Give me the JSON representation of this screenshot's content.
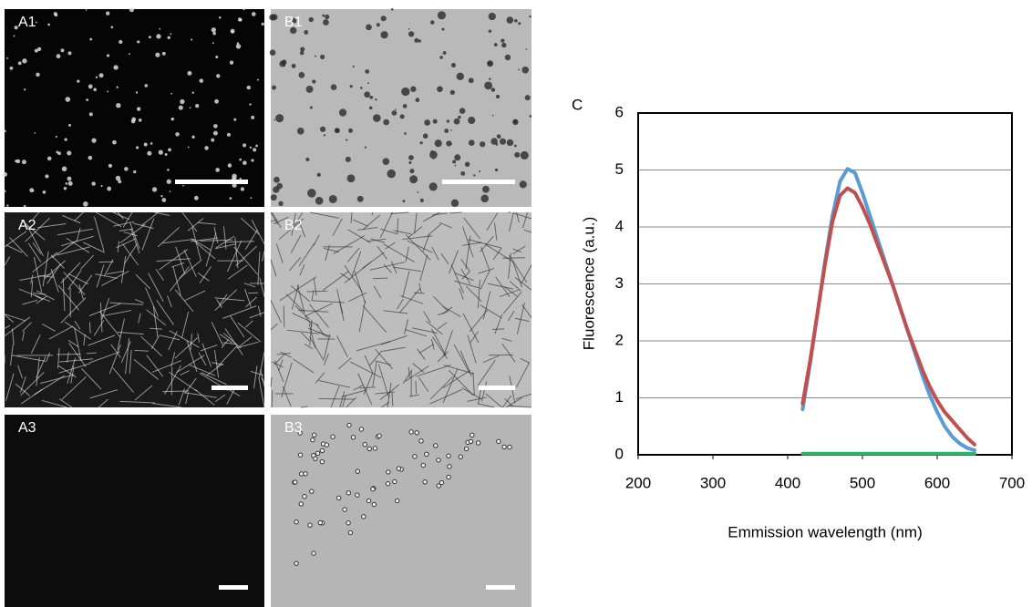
{
  "panels": [
    "A1",
    "B1",
    "A2",
    "B2",
    "A3",
    "B3"
  ],
  "chart_data": {
    "type": "line",
    "panel_label": "C",
    "x_label": "Emmission wavelength (nm)",
    "y_label": "Fluorescence (a.u.)",
    "x": [
      420,
      430,
      440,
      450,
      460,
      470,
      480,
      490,
      500,
      510,
      520,
      530,
      540,
      550,
      560,
      570,
      580,
      590,
      600,
      610,
      620,
      630,
      640,
      650
    ],
    "series": [
      {
        "color": "#5b9bd5",
        "values": [
          0.8,
          1.6,
          2.5,
          3.4,
          4.2,
          4.8,
          5.02,
          4.95,
          4.6,
          4.2,
          3.8,
          3.4,
          3.0,
          2.6,
          2.2,
          1.8,
          1.4,
          1.05,
          0.75,
          0.5,
          0.32,
          0.2,
          0.12,
          0.08
        ]
      },
      {
        "color": "#c0504d",
        "values": [
          0.9,
          1.65,
          2.5,
          3.35,
          4.1,
          4.55,
          4.68,
          4.6,
          4.35,
          4.05,
          3.7,
          3.35,
          3.0,
          2.6,
          2.2,
          1.85,
          1.5,
          1.2,
          0.95,
          0.75,
          0.6,
          0.45,
          0.3,
          0.18
        ]
      },
      {
        "color": "#2fb36b",
        "values": [
          0.02,
          0.02,
          0.02,
          0.02,
          0.02,
          0.02,
          0.02,
          0.02,
          0.02,
          0.02,
          0.02,
          0.02,
          0.02,
          0.02,
          0.02,
          0.02,
          0.02,
          0.02,
          0.02,
          0.02,
          0.02,
          0.02,
          0.02,
          0.02
        ]
      }
    ],
    "xlim": [
      200,
      700
    ],
    "xticks": [
      200,
      300,
      400,
      500,
      600,
      700
    ],
    "ylim": [
      0,
      6
    ],
    "yticks": [
      0,
      1,
      2,
      3,
      4,
      5,
      6
    ],
    "grid": true
  }
}
